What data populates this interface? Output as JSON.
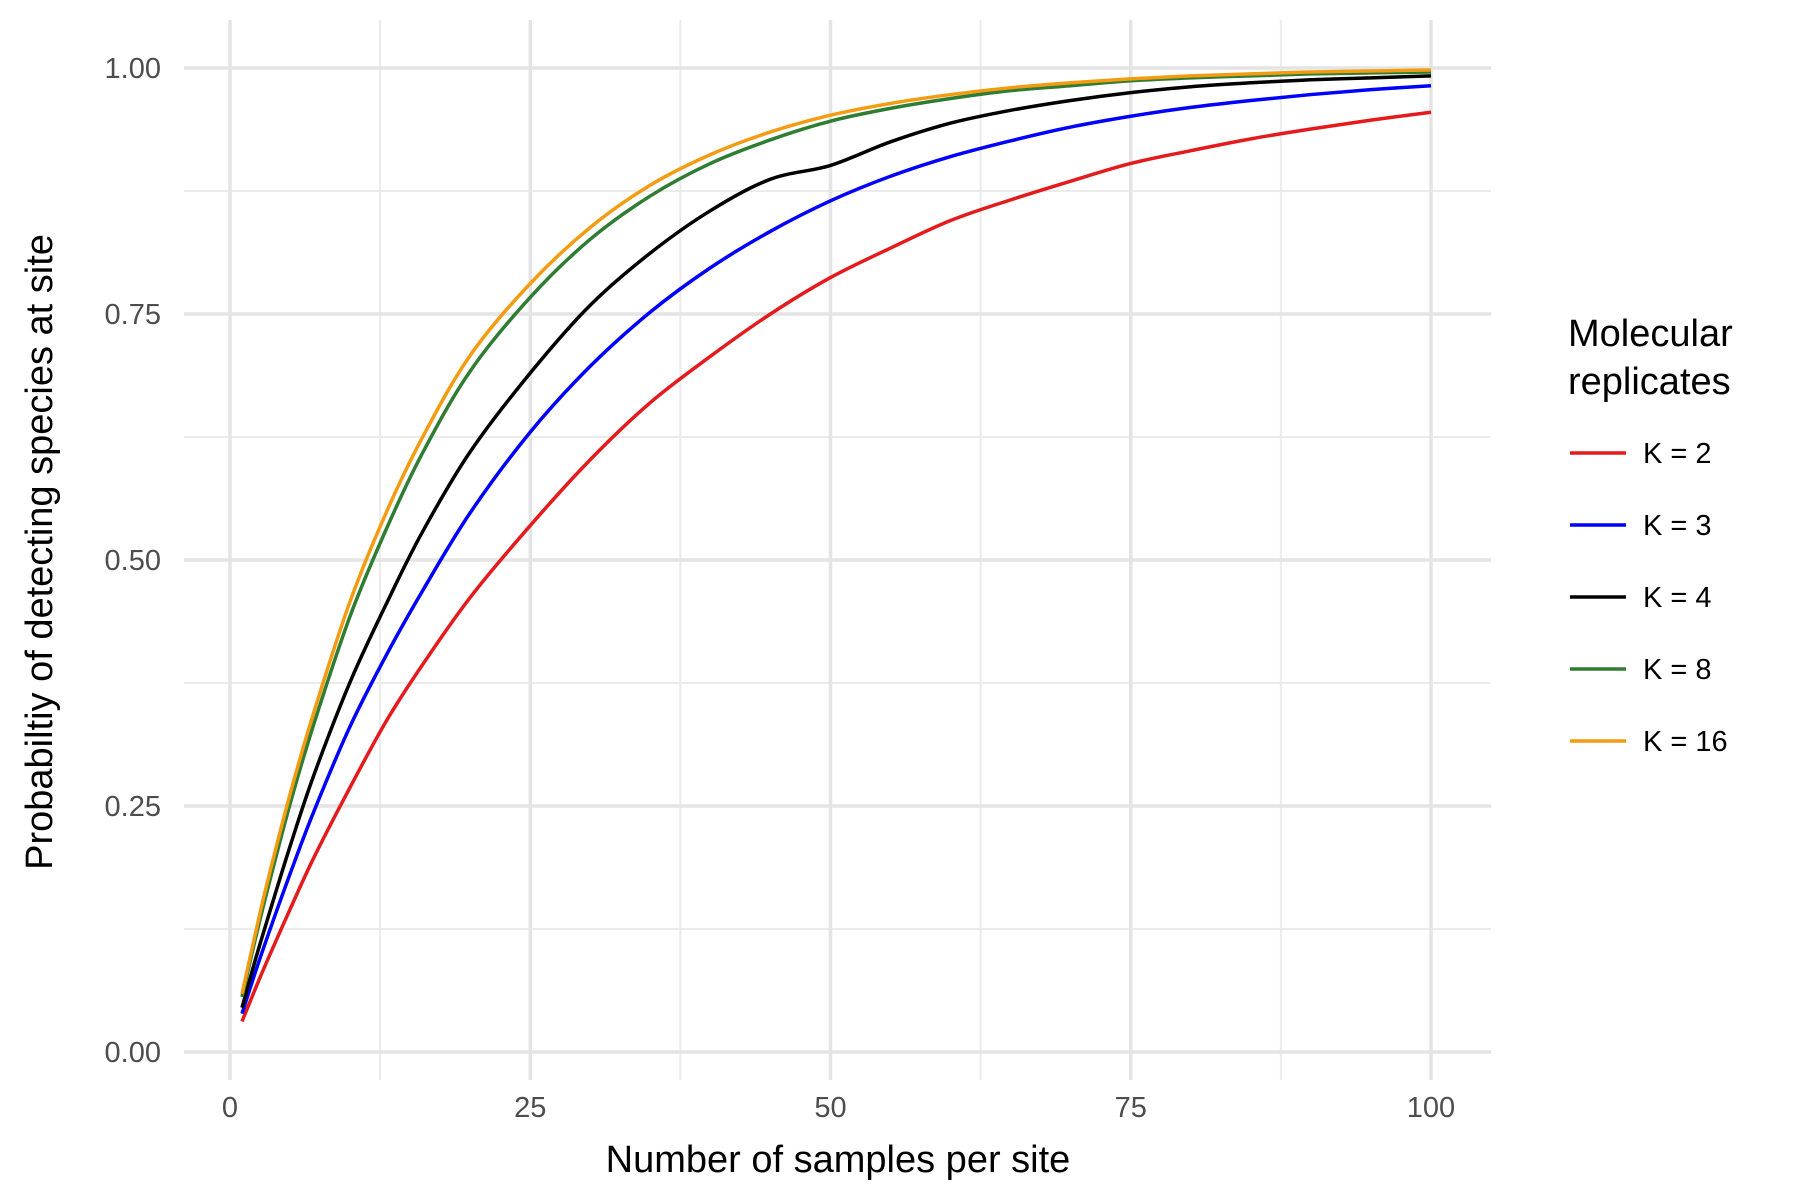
{
  "chart_data": {
    "type": "line",
    "title": "",
    "xlabel": "Number of samples per site",
    "ylabel": "Probabiltiy of detecting species at site",
    "xlim": [
      0,
      100
    ],
    "ylim": [
      0,
      1
    ],
    "x_ticks": [
      0,
      25,
      50,
      75,
      100
    ],
    "x_tick_labels": [
      "0",
      "25",
      "50",
      "75",
      "100"
    ],
    "y_ticks": [
      0,
      0.25,
      0.5,
      0.75,
      1.0
    ],
    "y_tick_labels": [
      "0.00",
      "0.25",
      "0.50",
      "0.75",
      "1.00"
    ],
    "grid": true,
    "legend": {
      "title_lines": [
        "Molecular",
        "replicates"
      ],
      "placement": "right"
    },
    "x": [
      1,
      2,
      3,
      5,
      7,
      10,
      13,
      16,
      20,
      25,
      30,
      35,
      40,
      45,
      50,
      55,
      60,
      65,
      70,
      75,
      80,
      85,
      90,
      95,
      100
    ],
    "series": [
      {
        "name": "K = 2",
        "color": "#e41a1c",
        "values": [
          0.031,
          0.061,
          0.09,
          0.145,
          0.198,
          0.269,
          0.336,
          0.393,
          0.462,
          0.535,
          0.602,
          0.66,
          0.707,
          0.75,
          0.787,
          0.817,
          0.845,
          0.866,
          0.885,
          0.903,
          0.916,
          0.928,
          0.938,
          0.947,
          0.955
        ]
      },
      {
        "name": "K = 3",
        "color": "#0000ff",
        "values": [
          0.039,
          0.077,
          0.113,
          0.181,
          0.245,
          0.331,
          0.403,
          0.468,
          0.548,
          0.63,
          0.697,
          0.752,
          0.797,
          0.834,
          0.865,
          0.89,
          0.91,
          0.926,
          0.94,
          0.951,
          0.96,
          0.967,
          0.973,
          0.978,
          0.982
        ]
      },
      {
        "name": "K = 4",
        "color": "#000000",
        "values": [
          0.045,
          0.089,
          0.13,
          0.209,
          0.282,
          0.376,
          0.455,
          0.528,
          0.61,
          0.69,
          0.759,
          0.812,
          0.855,
          0.887,
          0.901,
          0.925,
          0.944,
          0.957,
          0.967,
          0.975,
          0.981,
          0.985,
          0.988,
          0.99,
          0.992
        ]
      },
      {
        "name": "K = 8",
        "color": "#2e7d32",
        "values": [
          0.056,
          0.109,
          0.159,
          0.252,
          0.334,
          0.443,
          0.531,
          0.608,
          0.692,
          0.767,
          0.826,
          0.87,
          0.903,
          0.927,
          0.946,
          0.959,
          0.969,
          0.977,
          0.982,
          0.987,
          0.99,
          0.992,
          0.994,
          0.995,
          0.996
        ]
      },
      {
        "name": "K = 16",
        "color": "#f39c12",
        "values": [
          0.059,
          0.114,
          0.167,
          0.262,
          0.346,
          0.458,
          0.548,
          0.624,
          0.708,
          0.781,
          0.838,
          0.881,
          0.912,
          0.935,
          0.952,
          0.964,
          0.973,
          0.98,
          0.985,
          0.989,
          0.992,
          0.994,
          0.996,
          0.997,
          0.998
        ]
      }
    ]
  }
}
